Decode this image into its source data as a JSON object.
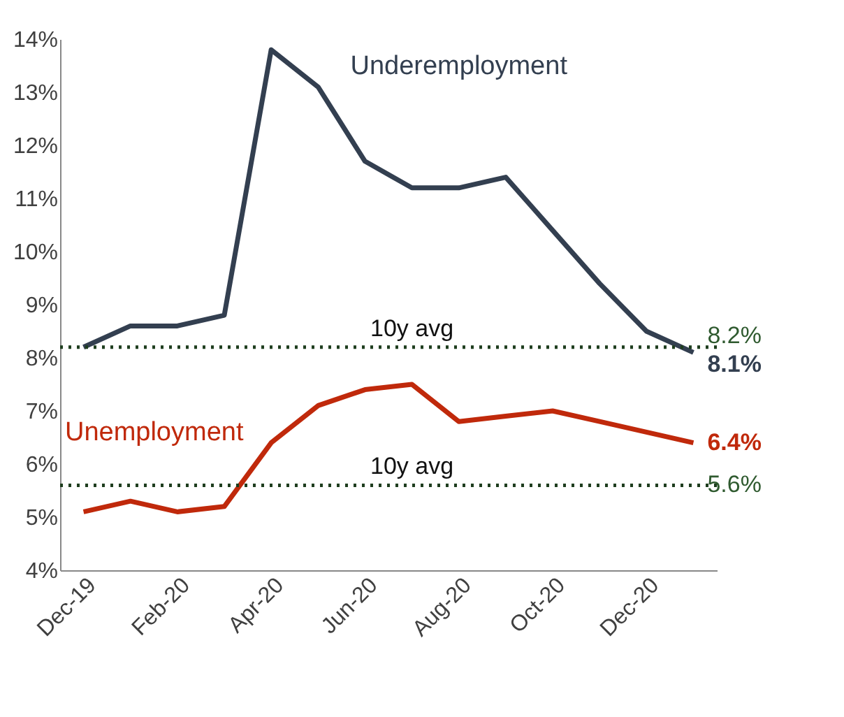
{
  "chart_data": {
    "type": "line",
    "categories": [
      "Dec-19",
      null,
      "Feb-20",
      null,
      "Apr-20",
      null,
      "Jun-20",
      null,
      "Aug-20",
      null,
      "Oct-20",
      null,
      "Dec-20",
      null
    ],
    "series": [
      {
        "name": "Underemployment",
        "color": "#333f50",
        "values": [
          8.2,
          8.6,
          8.6,
          8.8,
          13.8,
          13.1,
          11.7,
          11.2,
          11.2,
          11.4,
          10.4,
          9.4,
          8.5,
          8.1
        ],
        "value_labels": [
          null,
          null,
          null,
          null,
          null,
          null,
          null,
          null,
          null,
          null,
          null,
          null,
          null,
          "8.1%"
        ]
      },
      {
        "name": "Unemployment",
        "color": "#c0290b",
        "values": [
          5.1,
          5.3,
          5.1,
          5.2,
          6.4,
          7.1,
          7.4,
          7.5,
          6.8,
          6.9,
          7.0,
          6.8,
          6.6,
          6.4
        ],
        "value_labels": [
          null,
          null,
          null,
          null,
          null,
          null,
          null,
          null,
          null,
          null,
          null,
          null,
          null,
          "6.4%"
        ]
      }
    ],
    "ylim": [
      4,
      14
    ],
    "yticks": [
      {
        "value": 4,
        "label": "4%"
      },
      {
        "value": 5,
        "label": "5%"
      },
      {
        "value": 6,
        "label": "6%"
      },
      {
        "value": 7,
        "label": "7%"
      },
      {
        "value": 8,
        "label": "8%"
      },
      {
        "value": 9,
        "label": "9%"
      },
      {
        "value": 10,
        "label": "10%"
      },
      {
        "value": 11,
        "label": "11%"
      },
      {
        "value": 12,
        "label": "12%"
      },
      {
        "value": 13,
        "label": "13%"
      },
      {
        "value": 14,
        "label": "14%"
      }
    ],
    "ref_lines": [
      {
        "axis": "y",
        "value": 8.2,
        "label": "10y avg",
        "color": "#1e3d1e",
        "line_style": "dotted"
      },
      {
        "axis": "y",
        "value": 5.6,
        "label": "10y avg",
        "color": "#1e3d1e",
        "line_style": "dotted"
      }
    ],
    "annotations": [
      "8.2%",
      "5.6%"
    ],
    "grid": false,
    "legend": false,
    "marker": "none",
    "line_style": "solid"
  }
}
